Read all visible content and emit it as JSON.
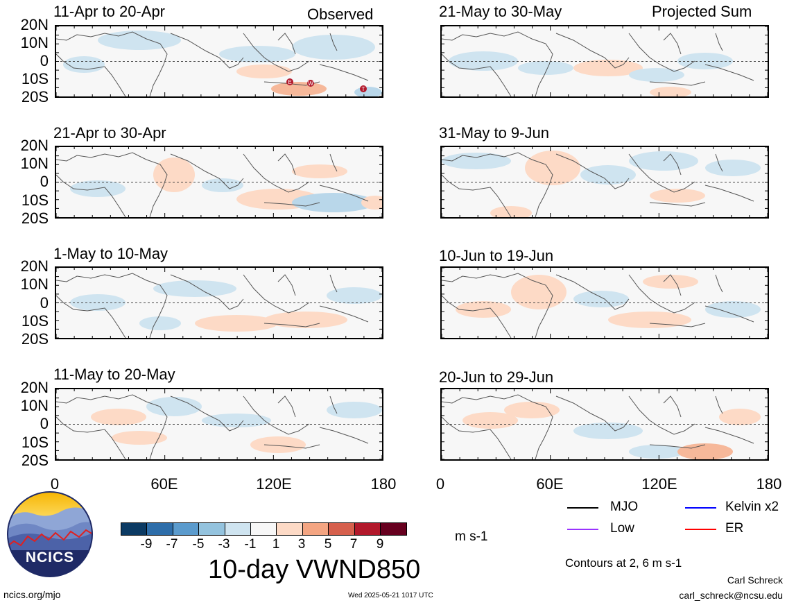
{
  "panels": [
    {
      "title": "11-Apr to 20-Apr",
      "corner": "Observed"
    },
    {
      "title": "21-Apr to 30-Apr",
      "corner": ""
    },
    {
      "title": "1-May to 10-May",
      "corner": ""
    },
    {
      "title": "11-May to 20-May",
      "corner": ""
    },
    {
      "title": "21-May to 30-May",
      "corner": "Projected Sum"
    },
    {
      "title": "31-May to 9-Jun",
      "corner": ""
    },
    {
      "title": "10-Jun to 19-Jun",
      "corner": ""
    },
    {
      "title": "20-Jun to 29-Jun",
      "corner": ""
    }
  ],
  "lat_labels": [
    "20N",
    "10N",
    "0",
    "10S",
    "20S"
  ],
  "lon_labels": [
    "0",
    "60E",
    "120E",
    "180"
  ],
  "colorbar": {
    "colors": [
      "#0b3a63",
      "#2e6eaa",
      "#5b9bcd",
      "#94c3de",
      "#cfe4f0",
      "#f7f7f7",
      "#fddac6",
      "#f4a582",
      "#d6604d",
      "#b2182b",
      "#67001f"
    ],
    "ticks": [
      "-9",
      "-7",
      "-5",
      "-3",
      "-1",
      "1",
      "3",
      "5",
      "7",
      "9"
    ],
    "units": "m s-1"
  },
  "title": "10-day VWND850",
  "legend": [
    {
      "label": "MJO",
      "color": "#000000"
    },
    {
      "label": "Kelvin x2",
      "color": "#0000ff"
    },
    {
      "label": "Low",
      "color": "#9933ff"
    },
    {
      "label": "ER",
      "color": "#ff0000"
    }
  ],
  "contours_note": "Contours at 2, 6 m s-1",
  "logo_text": "NCICS",
  "footer": {
    "url": "ncics.org/mjo",
    "timestamp": "Wed 2025-05-21 1017 UTC",
    "author": "Carl Schreck",
    "email": "carl_schreck@ncsu.edu"
  },
  "markers": [
    "E",
    "W",
    "T"
  ]
}
